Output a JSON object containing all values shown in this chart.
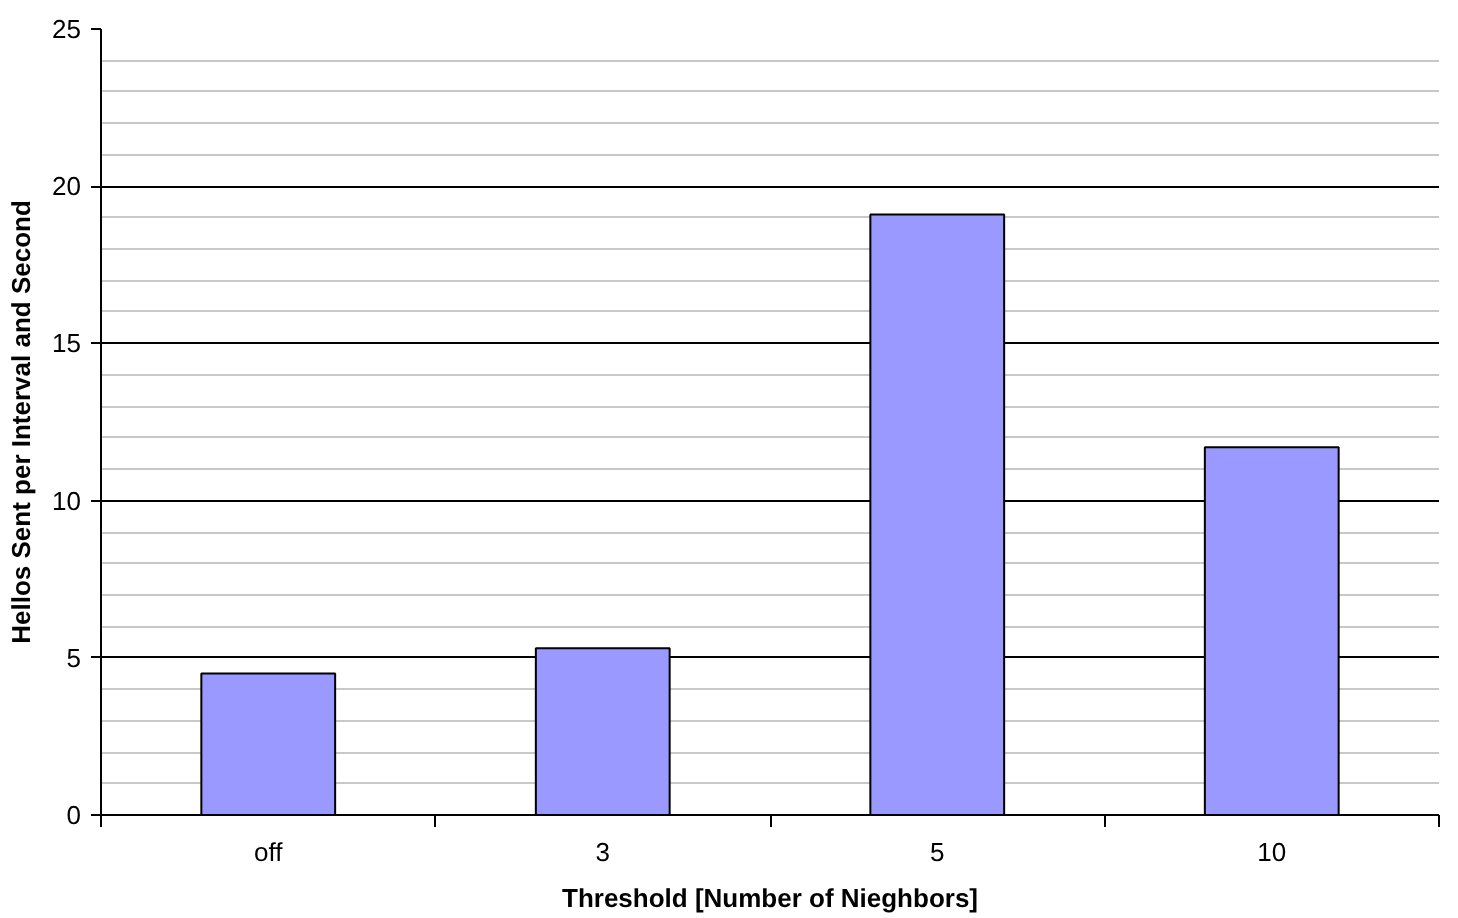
{
  "chart_data": {
    "type": "bar",
    "xlabel": "Threshold [Number of Nieghbors]",
    "ylabel": "Hellos Sent per Interval and Second",
    "categories": [
      "off",
      "3",
      "5",
      "10"
    ],
    "values": [
      4.5,
      5.3,
      19.1,
      11.7
    ],
    "color": "#9999ff",
    "ylim": [
      0,
      25
    ],
    "yticks": [
      0,
      5,
      10,
      15,
      20,
      25
    ],
    "grid": "y"
  }
}
